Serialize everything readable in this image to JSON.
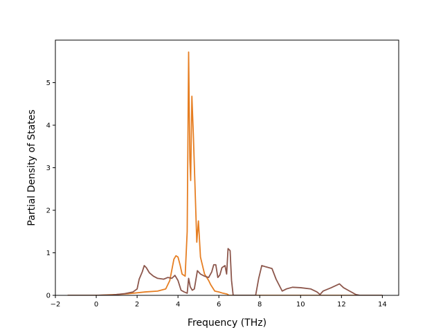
{
  "chart_data": {
    "type": "line",
    "title": "",
    "xlabel": "Frequency (THz)",
    "ylabel": "Partial Density of States",
    "xlim": [
      -2,
      14.8
    ],
    "ylim": [
      0,
      6.0
    ],
    "xticks": [
      -2,
      0,
      2,
      4,
      6,
      8,
      10,
      12,
      14
    ],
    "yticks": [
      0,
      1,
      2,
      3,
      4,
      5
    ],
    "grid": false,
    "legend": "none",
    "series": [
      {
        "color": "#e67e22",
        "points": [
          [
            -1.4,
            0.0
          ],
          [
            0.0,
            0.0
          ],
          [
            1.0,
            0.02
          ],
          [
            1.6,
            0.04
          ],
          [
            2.0,
            0.06
          ],
          [
            2.4,
            0.08
          ],
          [
            3.0,
            0.1
          ],
          [
            3.4,
            0.15
          ],
          [
            3.6,
            0.35
          ],
          [
            3.8,
            0.85
          ],
          [
            3.9,
            0.93
          ],
          [
            4.0,
            0.9
          ],
          [
            4.1,
            0.72
          ],
          [
            4.2,
            0.5
          ],
          [
            4.35,
            0.45
          ],
          [
            4.45,
            1.5
          ],
          [
            4.52,
            5.72
          ],
          [
            4.58,
            3.2
          ],
          [
            4.62,
            2.7
          ],
          [
            4.68,
            4.68
          ],
          [
            4.75,
            3.8
          ],
          [
            4.85,
            2.3
          ],
          [
            4.92,
            1.25
          ],
          [
            5.0,
            1.75
          ],
          [
            5.1,
            0.9
          ],
          [
            5.3,
            0.5
          ],
          [
            5.5,
            0.35
          ],
          [
            5.6,
            0.25
          ],
          [
            5.8,
            0.1
          ],
          [
            6.0,
            0.08
          ],
          [
            6.2,
            0.05
          ],
          [
            6.4,
            0.03
          ],
          [
            6.5,
            0.0
          ],
          [
            14.0,
            0.0
          ]
        ]
      },
      {
        "color": "#8c564b",
        "points": [
          [
            -1.4,
            0.0
          ],
          [
            0.0,
            0.0
          ],
          [
            0.8,
            0.01
          ],
          [
            1.4,
            0.04
          ],
          [
            1.8,
            0.08
          ],
          [
            2.0,
            0.15
          ],
          [
            2.1,
            0.38
          ],
          [
            2.25,
            0.55
          ],
          [
            2.35,
            0.7
          ],
          [
            2.45,
            0.65
          ],
          [
            2.6,
            0.53
          ],
          [
            2.8,
            0.45
          ],
          [
            3.0,
            0.4
          ],
          [
            3.3,
            0.38
          ],
          [
            3.5,
            0.42
          ],
          [
            3.7,
            0.4
          ],
          [
            3.85,
            0.47
          ],
          [
            4.0,
            0.35
          ],
          [
            4.15,
            0.12
          ],
          [
            4.3,
            0.08
          ],
          [
            4.45,
            0.05
          ],
          [
            4.52,
            0.4
          ],
          [
            4.6,
            0.2
          ],
          [
            4.7,
            0.12
          ],
          [
            4.8,
            0.15
          ],
          [
            4.95,
            0.58
          ],
          [
            5.1,
            0.5
          ],
          [
            5.3,
            0.45
          ],
          [
            5.5,
            0.42
          ],
          [
            5.65,
            0.55
          ],
          [
            5.75,
            0.72
          ],
          [
            5.85,
            0.72
          ],
          [
            5.95,
            0.42
          ],
          [
            6.05,
            0.48
          ],
          [
            6.15,
            0.65
          ],
          [
            6.3,
            0.7
          ],
          [
            6.38,
            0.5
          ],
          [
            6.45,
            1.1
          ],
          [
            6.55,
            1.05
          ],
          [
            6.62,
            0.35
          ],
          [
            6.7,
            0.0
          ],
          [
            7.8,
            0.0
          ],
          [
            7.95,
            0.4
          ],
          [
            8.1,
            0.7
          ],
          [
            8.3,
            0.67
          ],
          [
            8.6,
            0.63
          ],
          [
            8.8,
            0.38
          ],
          [
            9.1,
            0.1
          ],
          [
            9.3,
            0.15
          ],
          [
            9.6,
            0.19
          ],
          [
            10.0,
            0.18
          ],
          [
            10.5,
            0.15
          ],
          [
            10.8,
            0.08
          ],
          [
            10.95,
            0.02
          ],
          [
            11.1,
            0.1
          ],
          [
            11.5,
            0.18
          ],
          [
            11.9,
            0.27
          ],
          [
            12.1,
            0.18
          ],
          [
            12.4,
            0.1
          ],
          [
            12.7,
            0.02
          ],
          [
            12.9,
            0.0
          ],
          [
            14.0,
            0.0
          ]
        ]
      }
    ]
  }
}
